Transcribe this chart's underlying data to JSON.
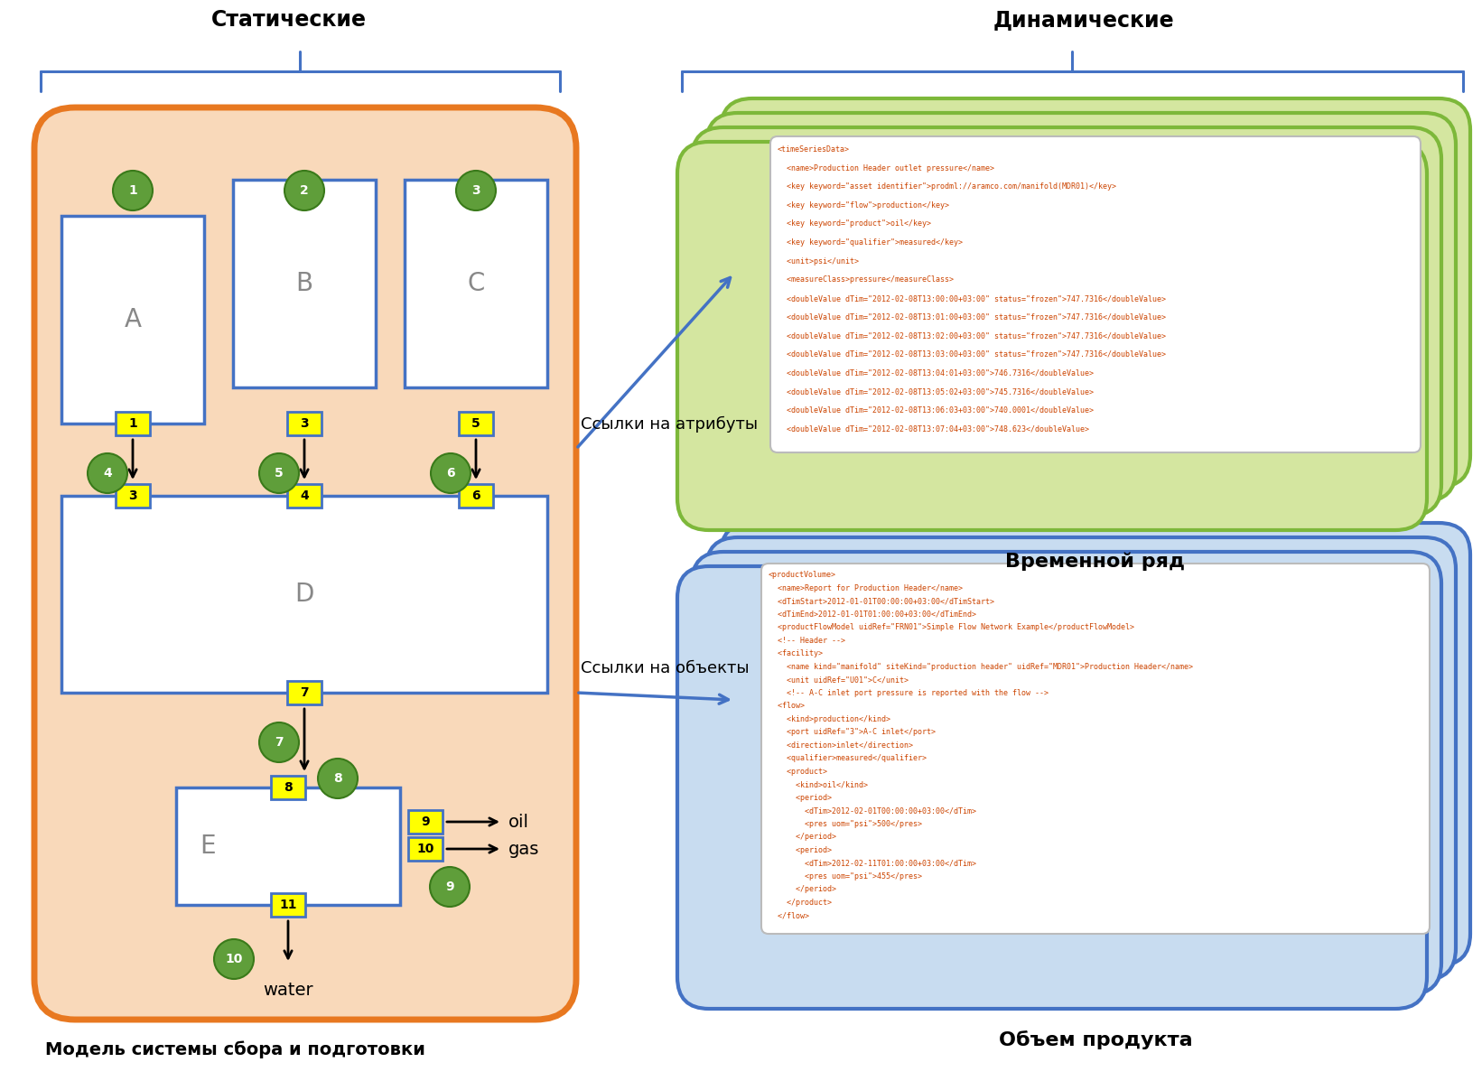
{
  "title_static": "Статические",
  "title_dynamic": "Динамические",
  "label_model": "Модель системы сбора и подготовки",
  "label_timeseries": "Временной ряд",
  "label_volume": "Объем продукта",
  "label_attr_links": "Ссылки на атрибуты",
  "label_obj_links": "Ссылки на объекты",
  "bg_color": "#FFFFFF",
  "orange_bg": "#F9D9BA",
  "orange_border": "#E87820",
  "blue_box_border": "#4472C4",
  "green_bg": "#D4E6A0",
  "green_border": "#7DB83A",
  "light_blue_bg": "#C8DCF0",
  "light_blue_border": "#4472C4",
  "yellow_fill": "#FFFF00",
  "yellow_border": "#4472C4",
  "green_circle_fill": "#5F9E3A",
  "green_circle_border": "#3A7A1A",
  "link_arrow_color": "#4472C4",
  "xml_tag_color": "#CC4400",
  "xml_attr_color": "#CC4400",
  "xml_text_color": "#000080"
}
